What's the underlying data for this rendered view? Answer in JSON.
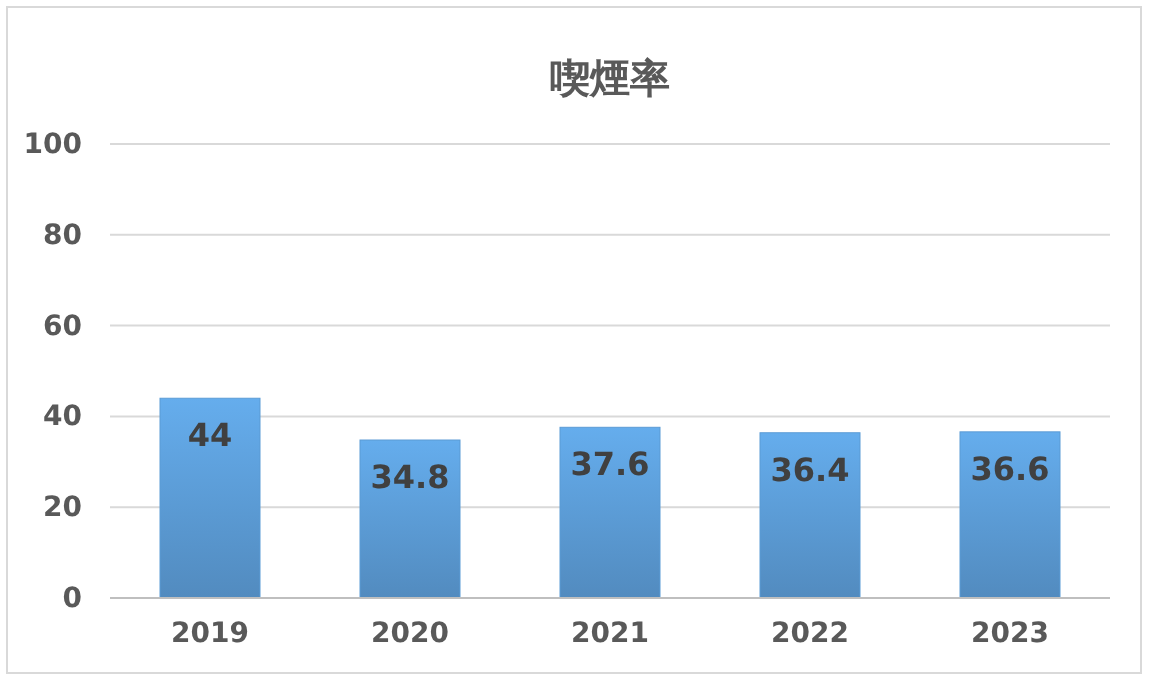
{
  "chart_data": {
    "type": "bar",
    "title": "喫煙率",
    "categories": [
      "2019",
      "2020",
      "2021",
      "2022",
      "2023"
    ],
    "values": [
      44,
      34.8,
      37.6,
      36.4,
      36.6
    ],
    "color": "#5b9bd5",
    "ylim": [
      0,
      100
    ],
    "yticks": [
      0,
      20,
      40,
      60,
      80,
      100
    ],
    "grid": "y",
    "data_labels": true
  }
}
